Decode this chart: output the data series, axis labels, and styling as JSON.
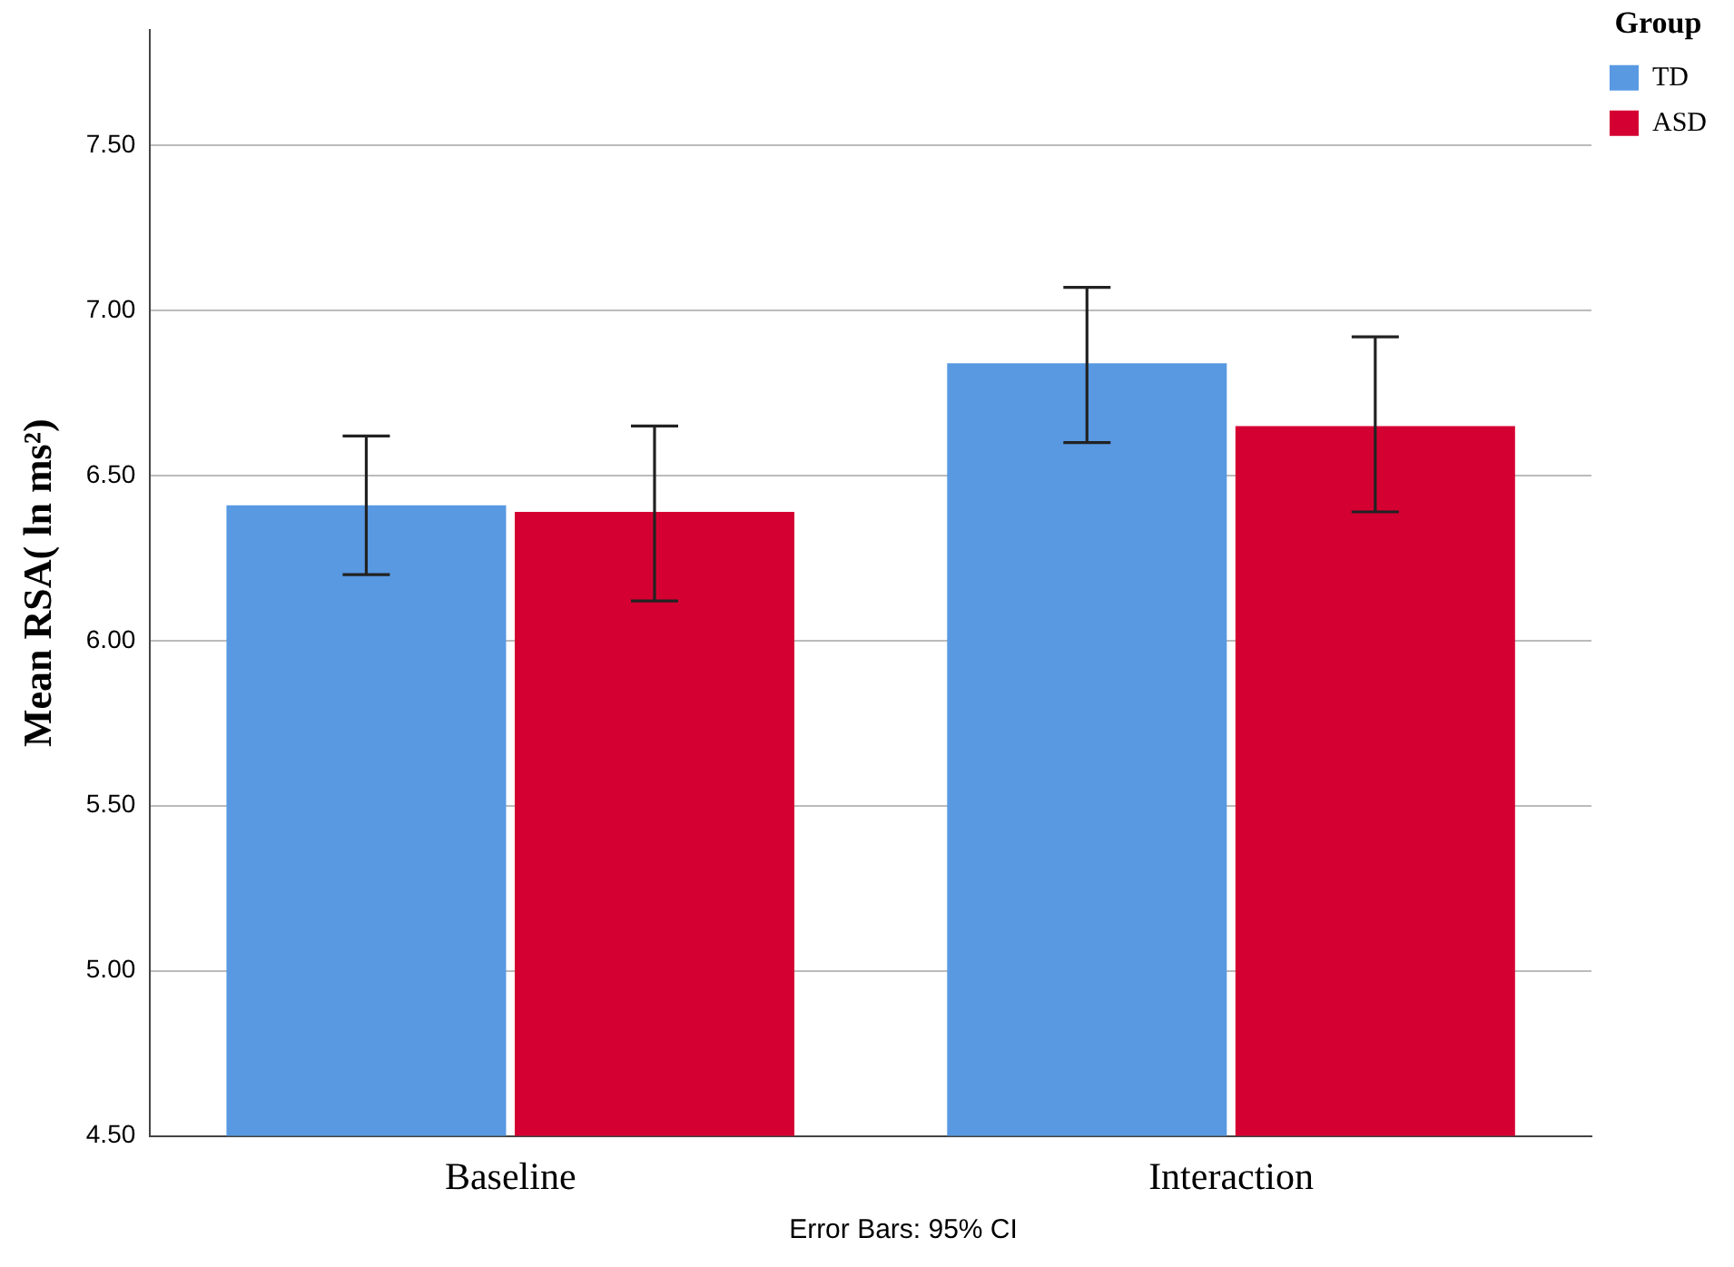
{
  "chart_data": {
    "type": "bar",
    "ylabel": "Mean RSA( ln ms²)",
    "legend_title": "Group",
    "categories": [
      "Baseline",
      "Interaction"
    ],
    "series": [
      {
        "name": "TD",
        "color": "#5899e2",
        "values": [
          6.41,
          6.84
        ],
        "errors": [
          [
            6.2,
            6.62
          ],
          [
            6.6,
            7.07
          ]
        ]
      },
      {
        "name": "ASD",
        "color": "#d50032",
        "values": [
          6.39,
          6.65
        ],
        "errors": [
          [
            6.12,
            6.65
          ],
          [
            6.39,
            6.92
          ]
        ]
      }
    ],
    "ylim": [
      4.5,
      7.85
    ],
    "yticks": [
      {
        "value": 4.5,
        "label": "4.50"
      },
      {
        "value": 5,
        "label": "5.00"
      },
      {
        "value": 5.5,
        "label": "5.50"
      },
      {
        "value": 6,
        "label": "6.00"
      },
      {
        "value": 6.5,
        "label": "6.50"
      },
      {
        "value": 7,
        "label": "7.00"
      },
      {
        "value": 7.5,
        "label": "7.50"
      }
    ],
    "grid": "y",
    "legend": "top right",
    "annotations": [
      "Error Bars: 95% CI"
    ]
  }
}
